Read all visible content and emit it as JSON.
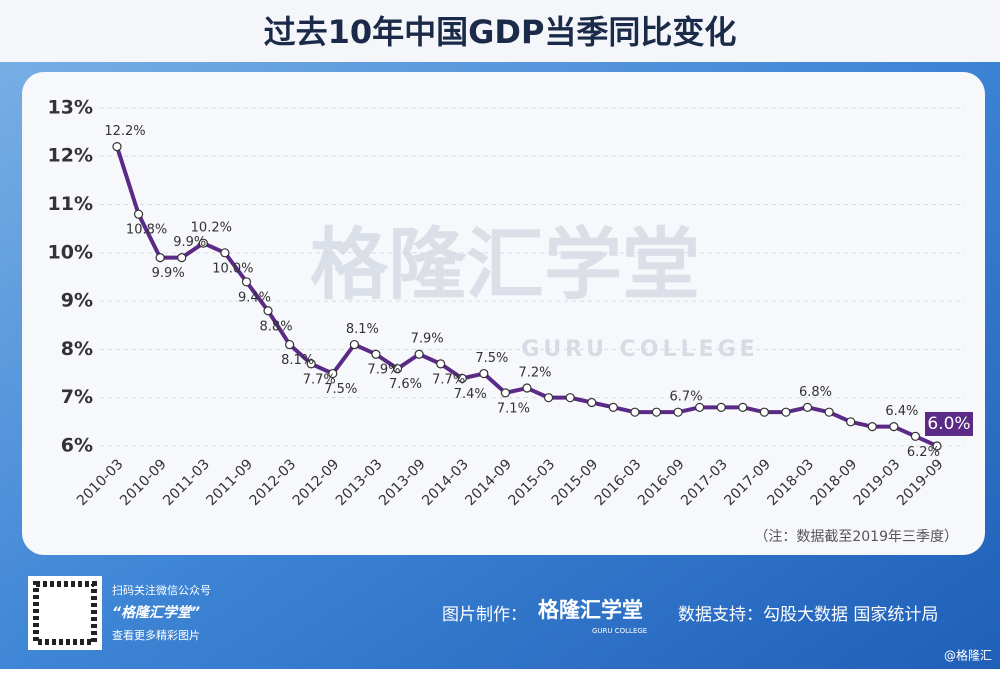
{
  "chart_data": {
    "type": "line",
    "title": "过去10年中国GDP当季同比变化",
    "categories": [
      "2010-03",
      null,
      "2010-09",
      null,
      "2011-03",
      null,
      "2011-09",
      null,
      "2012-03",
      null,
      "2012-09",
      null,
      "2013-03",
      null,
      "2013-09",
      null,
      "2014-03",
      null,
      "2014-09",
      null,
      "2015-03",
      null,
      "2015-09",
      null,
      "2016-03",
      null,
      "2016-09",
      null,
      "2017-03",
      null,
      "2017-09",
      null,
      "2018-03",
      null,
      "2018-09",
      null,
      "2019-03",
      null,
      "2019-09"
    ],
    "values": [
      12.2,
      10.8,
      9.9,
      9.9,
      10.2,
      10.0,
      9.4,
      8.8,
      8.1,
      7.7,
      7.5,
      8.1,
      7.9,
      7.6,
      7.9,
      7.7,
      7.4,
      7.5,
      7.1,
      7.2,
      7.0,
      7.0,
      6.9,
      6.8,
      6.7,
      6.7,
      6.7,
      6.8,
      6.8,
      6.8,
      6.7,
      6.7,
      6.8,
      6.7,
      6.5,
      6.4,
      6.4,
      6.2,
      6.0
    ],
    "value_labels": [
      "12.2%",
      "10.8%",
      "9.9%",
      "9.9%",
      "10.2%",
      "10.0%",
      "9.4%",
      "8.8%",
      "8.1%",
      "7.7%",
      "7.5%",
      "8.1%",
      "7.9%",
      "7.6%",
      "7.9%",
      "7.7%",
      "7.4%",
      "7.5%",
      "7.1%",
      "7.2%",
      null,
      null,
      null,
      null,
      null,
      null,
      "6.7%",
      null,
      null,
      null,
      null,
      null,
      "6.8%",
      null,
      null,
      null,
      "6.4%",
      "6.2%",
      "6.0%"
    ],
    "color": "#5b2a86",
    "ylim": [
      5.9,
      13.2
    ],
    "yticks": [
      {
        "value": 6,
        "label": "6%"
      },
      {
        "value": 7,
        "label": "7%"
      },
      {
        "value": 8,
        "label": "8%"
      },
      {
        "value": 9,
        "label": "9%"
      },
      {
        "value": 10,
        "label": "10%"
      },
      {
        "value": 11,
        "label": "11%"
      },
      {
        "value": 12,
        "label": "12%"
      },
      {
        "value": 13,
        "label": "13%"
      }
    ],
    "grid": true,
    "note": "（注：数据截至2019年三季度）"
  },
  "watermark": {
    "name": "格隆汇学堂",
    "sub": "GURU COLLEGE"
  },
  "footer": {
    "qr_line1": "扫码关注微信公众号",
    "qr_line2": "“格隆汇学堂”",
    "qr_line3": "查看更多精彩图片",
    "made_by": "图片制作：",
    "brand": "格隆汇学堂",
    "brand_sub": "GURU COLLEGE",
    "source": "数据支持：勾股大数据  国家统计局",
    "credit": "@格隆汇"
  }
}
